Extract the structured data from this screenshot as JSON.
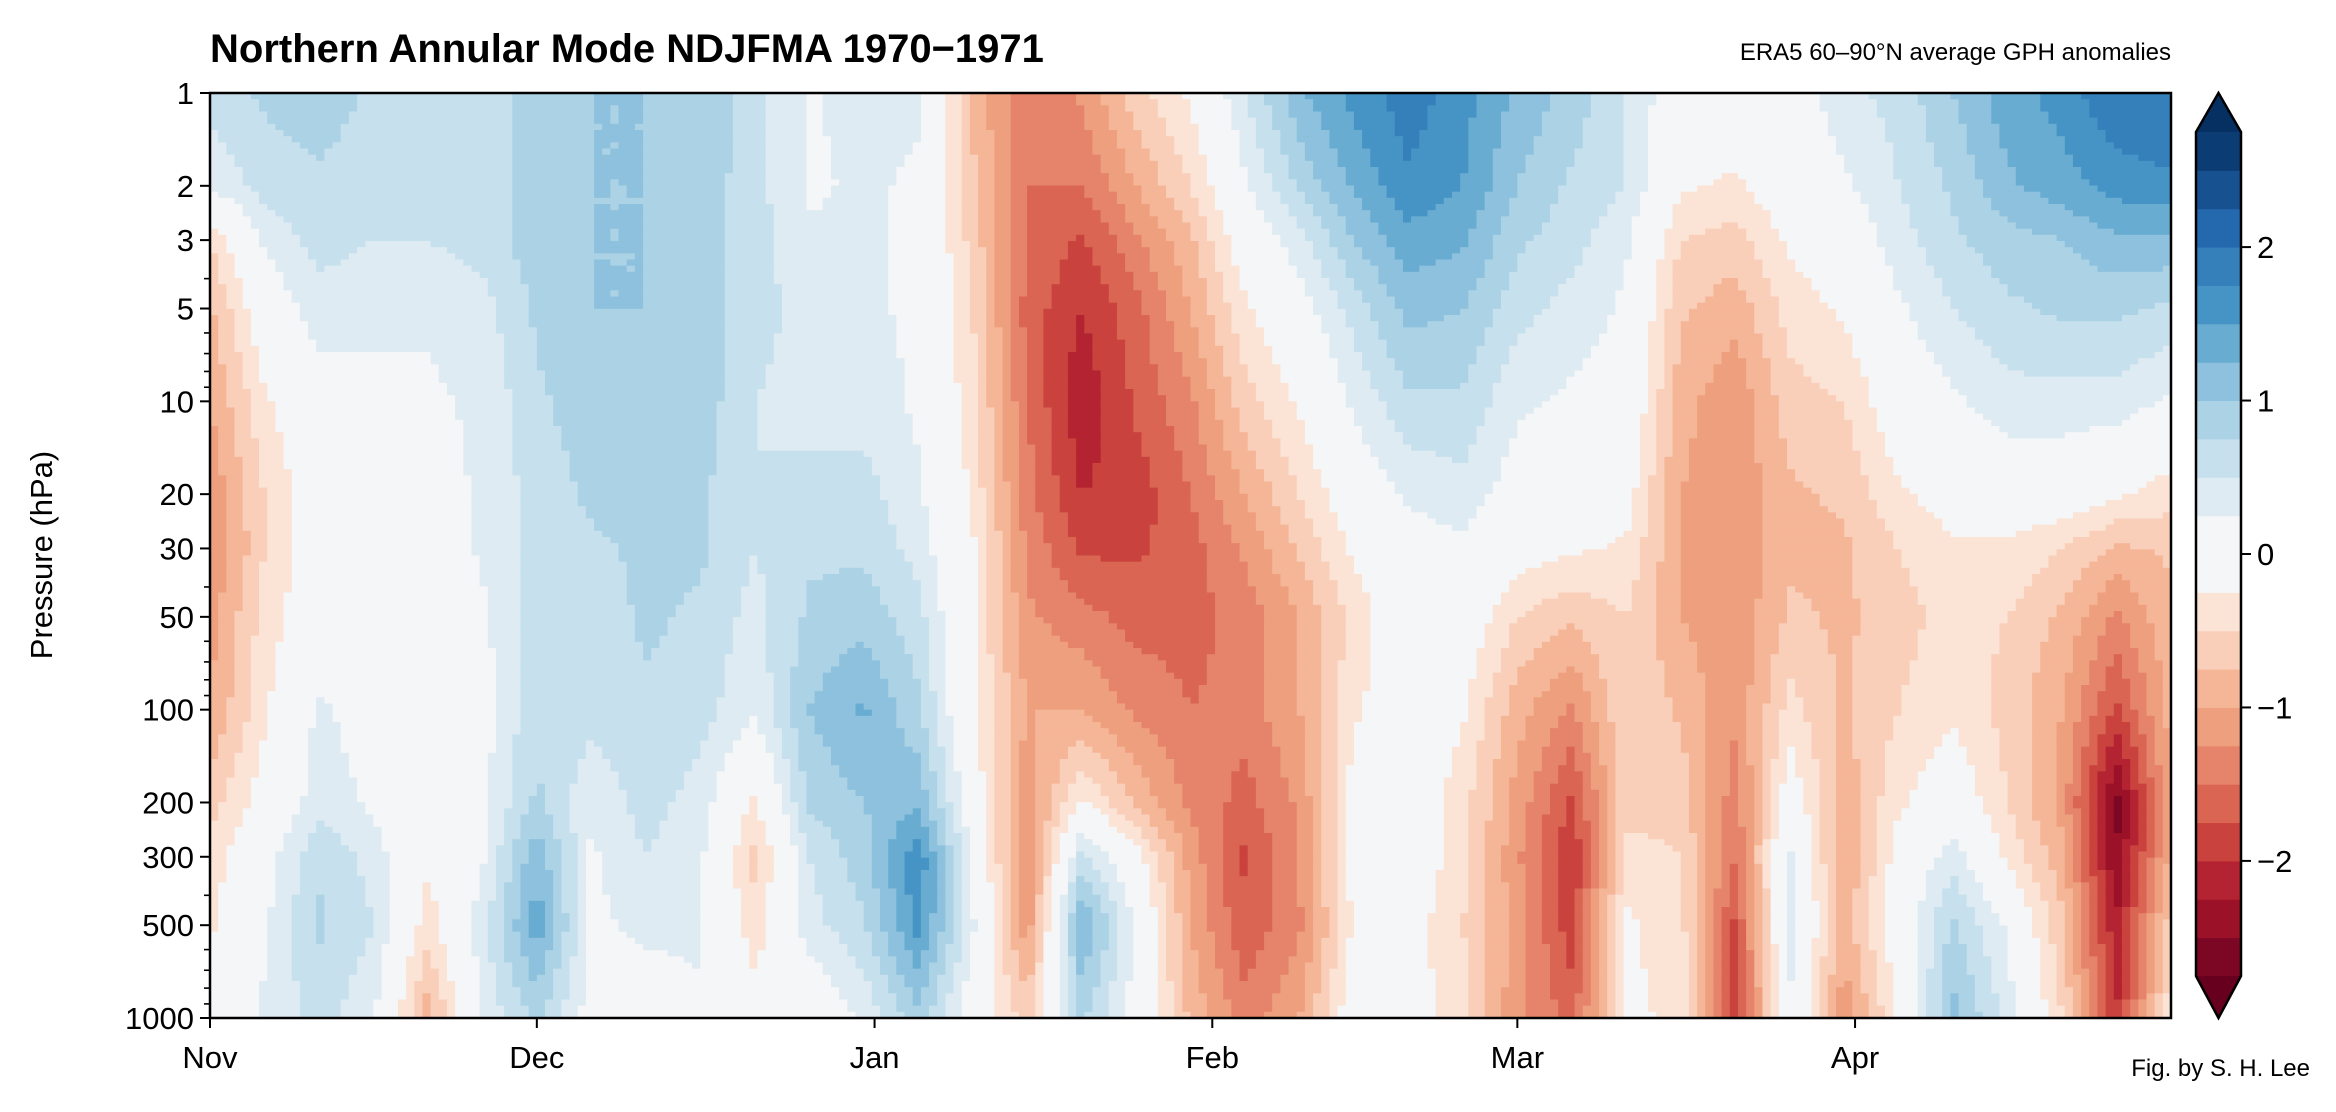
{
  "chart_data": {
    "type": "heatmap",
    "title": "Northern Annular Mode NDJFMA 1970−1971",
    "subtitle": "ERA5 60–90°N average GPH anomalies",
    "ylabel": "Pressure (hPa)",
    "xlabel": "",
    "credit": "Fig. by S. H. Lee",
    "y_scale": "log",
    "y_inverted": true,
    "ylim": [
      1000,
      1
    ],
    "xlim": [
      "1970-11-01",
      "1971-04-30"
    ],
    "x_ticks": [
      {
        "date": "1970-11-01",
        "label": "Nov"
      },
      {
        "date": "1970-12-01",
        "label": "Dec"
      },
      {
        "date": "1971-01-01",
        "label": "Jan"
      },
      {
        "date": "1971-02-01",
        "label": "Feb"
      },
      {
        "date": "1971-03-01",
        "label": "Mar"
      },
      {
        "date": "1971-04-01",
        "label": "Apr"
      }
    ],
    "y_ticks": [
      1,
      2,
      3,
      5,
      10,
      20,
      30,
      50,
      100,
      200,
      300,
      500,
      1000
    ],
    "y_tick_labels": [
      "1",
      "2",
      "3",
      "5",
      "10",
      "20",
      "30",
      "50",
      "100",
      "200",
      "300",
      "500",
      "1000"
    ],
    "pressure_levels": [
      1,
      2,
      3,
      5,
      10,
      20,
      30,
      50,
      100,
      200,
      300,
      500,
      1000
    ],
    "dates": [
      "1970-11-01",
      "1970-11-06",
      "1970-11-11",
      "1970-11-16",
      "1970-11-21",
      "1970-11-26",
      "1970-12-01",
      "1970-12-06",
      "1970-12-11",
      "1970-12-16",
      "1970-12-21",
      "1970-12-26",
      "1970-12-31",
      "1971-01-05",
      "1971-01-10",
      "1971-01-15",
      "1971-01-20",
      "1971-01-25",
      "1971-01-30",
      "1971-02-04",
      "1971-02-09",
      "1971-02-14",
      "1971-02-19",
      "1971-02-24",
      "1971-03-01",
      "1971-03-06",
      "1971-03-11",
      "1971-03-16",
      "1971-03-21",
      "1971-03-26",
      "1971-03-31",
      "1971-04-05",
      "1971-04-10",
      "1971-04-15",
      "1971-04-20",
      "1971-04-25",
      "1971-04-30"
    ],
    "values_by_date": [
      [
        0.6,
        0.3,
        -0.5,
        -0.8,
        -1.0,
        -1.2,
        -1.3,
        -1.1,
        -1.0,
        -0.6,
        -0.4,
        -0.3,
        0.0
      ],
      [
        0.8,
        0.6,
        0.3,
        0.0,
        -0.3,
        -0.5,
        -0.5,
        -0.4,
        -0.3,
        -0.1,
        0.1,
        0.2,
        0.3
      ],
      [
        0.9,
        0.7,
        0.6,
        0.4,
        0.1,
        0.0,
        0.0,
        0.0,
        0.3,
        0.4,
        0.7,
        0.8,
        0.6
      ],
      [
        0.7,
        0.6,
        0.5,
        0.3,
        0.2,
        0.1,
        0.0,
        0.0,
        0.1,
        0.2,
        0.4,
        0.5,
        0.3
      ],
      [
        0.6,
        0.6,
        0.5,
        0.3,
        0.2,
        0.1,
        0.0,
        0.0,
        0.0,
        -0.1,
        -0.2,
        -0.4,
        -0.9
      ],
      [
        0.6,
        0.6,
        0.6,
        0.4,
        0.3,
        0.3,
        0.3,
        0.2,
        0.1,
        0.2,
        0.2,
        0.4,
        0.3
      ],
      [
        0.9,
        0.9,
        0.9,
        0.8,
        0.7,
        0.6,
        0.6,
        0.6,
        0.7,
        0.8,
        1.2,
        1.4,
        0.8
      ],
      [
        1.0,
        1.0,
        1.0,
        1.0,
        0.9,
        0.8,
        0.7,
        0.6,
        0.6,
        0.3,
        0.2,
        0.2,
        0.1
      ],
      [
        1.0,
        1.0,
        1.0,
        1.0,
        1.0,
        0.9,
        0.8,
        0.8,
        0.7,
        0.6,
        0.5,
        0.3,
        0.1
      ],
      [
        1.0,
        0.9,
        0.9,
        0.9,
        0.9,
        0.8,
        0.8,
        0.7,
        0.6,
        0.4,
        0.3,
        0.3,
        0.2
      ],
      [
        0.6,
        0.6,
        0.6,
        0.6,
        0.5,
        0.5,
        0.5,
        0.4,
        0.3,
        -0.3,
        -0.6,
        -0.4,
        -0.1
      ],
      [
        0.2,
        0.2,
        0.3,
        0.4,
        0.4,
        0.6,
        0.7,
        0.8,
        1.0,
        0.8,
        0.5,
        0.4,
        -0.1
      ],
      [
        0.4,
        0.3,
        0.3,
        0.3,
        0.4,
        0.6,
        0.7,
        0.9,
        1.3,
        1.0,
        0.9,
        0.7,
        0.3
      ],
      [
        0.3,
        0.2,
        0.2,
        0.2,
        0.2,
        0.3,
        0.4,
        0.6,
        0.8,
        1.2,
        1.7,
        1.6,
        0.9
      ],
      [
        -0.8,
        -0.7,
        -0.6,
        -0.5,
        -0.4,
        -0.3,
        -0.2,
        -0.2,
        -0.2,
        0.0,
        0.2,
        0.3,
        0.0
      ],
      [
        -1.5,
        -1.5,
        -1.5,
        -1.6,
        -1.5,
        -1.4,
        -1.3,
        -1.2,
        -1.0,
        -1.2,
        -1.3,
        -1.2,
        -0.6
      ],
      [
        -1.2,
        -1.5,
        -1.8,
        -2.0,
        -2.2,
        -2.0,
        -1.8,
        -1.4,
        -1.0,
        -0.2,
        0.6,
        1.3,
        0.8
      ],
      [
        -0.6,
        -1.0,
        -1.3,
        -1.6,
        -1.7,
        -1.9,
        -1.8,
        -1.6,
        -1.3,
        -0.8,
        -0.1,
        0.2,
        0.1
      ],
      [
        -0.2,
        -0.5,
        -0.8,
        -1.0,
        -1.3,
        -1.5,
        -1.6,
        -1.6,
        -1.5,
        -1.3,
        -1.1,
        -1.0,
        -0.8
      ],
      [
        0.5,
        0.2,
        0.0,
        -0.3,
        -0.6,
        -1.0,
        -1.2,
        -1.4,
        -1.4,
        -1.6,
        -1.8,
        -1.7,
        -1.4
      ],
      [
        1.2,
        0.8,
        0.4,
        0.1,
        -0.2,
        -0.5,
        -0.7,
        -1.0,
        -1.0,
        -1.2,
        -1.2,
        -1.3,
        -1.0
      ],
      [
        1.6,
        1.3,
        1.0,
        0.6,
        0.3,
        0.0,
        -0.2,
        -0.4,
        -0.3,
        -0.1,
        -0.1,
        -0.2,
        0.0
      ],
      [
        1.9,
        1.7,
        1.4,
        1.1,
        0.7,
        0.3,
        0.1,
        0.0,
        0.0,
        0.0,
        0.0,
        -0.1,
        -0.1
      ],
      [
        1.6,
        1.5,
        1.3,
        1.0,
        0.7,
        0.4,
        0.2,
        0.0,
        -0.2,
        -0.4,
        -0.4,
        -0.5,
        -0.4
      ],
      [
        1.2,
        1.0,
        0.8,
        0.6,
        0.3,
        0.1,
        -0.1,
        -0.5,
        -0.9,
        -1.1,
        -1.2,
        -1.1,
        -1.2
      ],
      [
        0.9,
        0.7,
        0.6,
        0.4,
        0.2,
        0.0,
        -0.2,
        -0.7,
        -1.3,
        -1.8,
        -2.0,
        -1.9,
        -1.6
      ],
      [
        0.5,
        0.5,
        0.3,
        0.2,
        0.1,
        -0.1,
        -0.3,
        -0.5,
        -0.5,
        -0.6,
        -0.4,
        -0.2,
        -0.2
      ],
      [
        0.0,
        -0.2,
        -0.5,
        -0.7,
        -0.9,
        -1.0,
        -1.0,
        -1.0,
        -0.8,
        -0.6,
        -0.5,
        -0.4,
        -0.3
      ],
      [
        0.0,
        -0.3,
        -0.6,
        -0.9,
        -1.2,
        -1.2,
        -1.2,
        -1.2,
        -1.2,
        -1.4,
        -1.5,
        -1.8,
        -2.0
      ],
      [
        0.1,
        0.0,
        -0.2,
        -0.4,
        -0.6,
        -0.8,
        -0.8,
        -0.7,
        -0.4,
        0.0,
        0.3,
        0.4,
        0.2
      ],
      [
        0.4,
        0.2,
        0.0,
        -0.2,
        -0.5,
        -0.7,
        -0.8,
        -0.8,
        -0.8,
        -0.9,
        -1.0,
        -0.9,
        -1.2
      ],
      [
        0.6,
        0.5,
        0.4,
        0.2,
        0.0,
        -0.3,
        -0.5,
        -0.6,
        -0.5,
        -0.3,
        -0.1,
        0.0,
        -0.2
      ],
      [
        1.0,
        0.8,
        0.7,
        0.5,
        0.2,
        -0.1,
        -0.3,
        -0.4,
        -0.3,
        0.0,
        0.4,
        0.8,
        1.1
      ],
      [
        1.4,
        1.2,
        0.9,
        0.7,
        0.4,
        0.0,
        -0.3,
        -0.5,
        -0.6,
        -0.5,
        -0.3,
        0.2,
        0.4
      ],
      [
        1.6,
        1.4,
        1.0,
        0.8,
        0.4,
        0.0,
        -0.5,
        -0.8,
        -1.0,
        -1.1,
        -0.9,
        -0.7,
        -0.5
      ],
      [
        2.0,
        1.6,
        1.2,
        0.8,
        0.4,
        -0.2,
        -0.8,
        -1.3,
        -1.8,
        -2.6,
        -2.5,
        -2.2,
        -2.0
      ],
      [
        2.0,
        1.7,
        1.2,
        0.7,
        0.2,
        -0.4,
        -0.7,
        -0.8,
        -0.9,
        -1.0,
        -0.9,
        -0.6,
        -0.3
      ]
    ],
    "colorbar": {
      "levels": [
        -2.75,
        -2.5,
        -2.25,
        -2.0,
        -1.75,
        -1.5,
        -1.25,
        -1.0,
        -0.75,
        -0.5,
        -0.25,
        0.25,
        0.5,
        0.75,
        1.0,
        1.25,
        1.5,
        1.75,
        2.0,
        2.25,
        2.5,
        2.75
      ],
      "extend": "both",
      "ticks": [
        -2,
        -1,
        0,
        1,
        2
      ],
      "tick_labels": [
        "−2",
        "−1",
        "0",
        "1",
        "2"
      ],
      "colormap": "RdBu (negative red, positive blue)",
      "under_color": "#67001f",
      "over_color": "#053061",
      "band_colors": [
        "#7b0724",
        "#9b1128",
        "#b42331",
        "#c9423d",
        "#d96552",
        "#e5846a",
        "#eea07e",
        "#f5b597",
        "#f9cfb9",
        "#fbe3d6",
        "#f5f6f7",
        "#deebf2",
        "#c7e0ed",
        "#acd2e5",
        "#8dc1dd",
        "#69acd1",
        "#4694c5",
        "#3580bb",
        "#2468ad",
        "#17518f",
        "#0b3c73"
      ]
    }
  }
}
